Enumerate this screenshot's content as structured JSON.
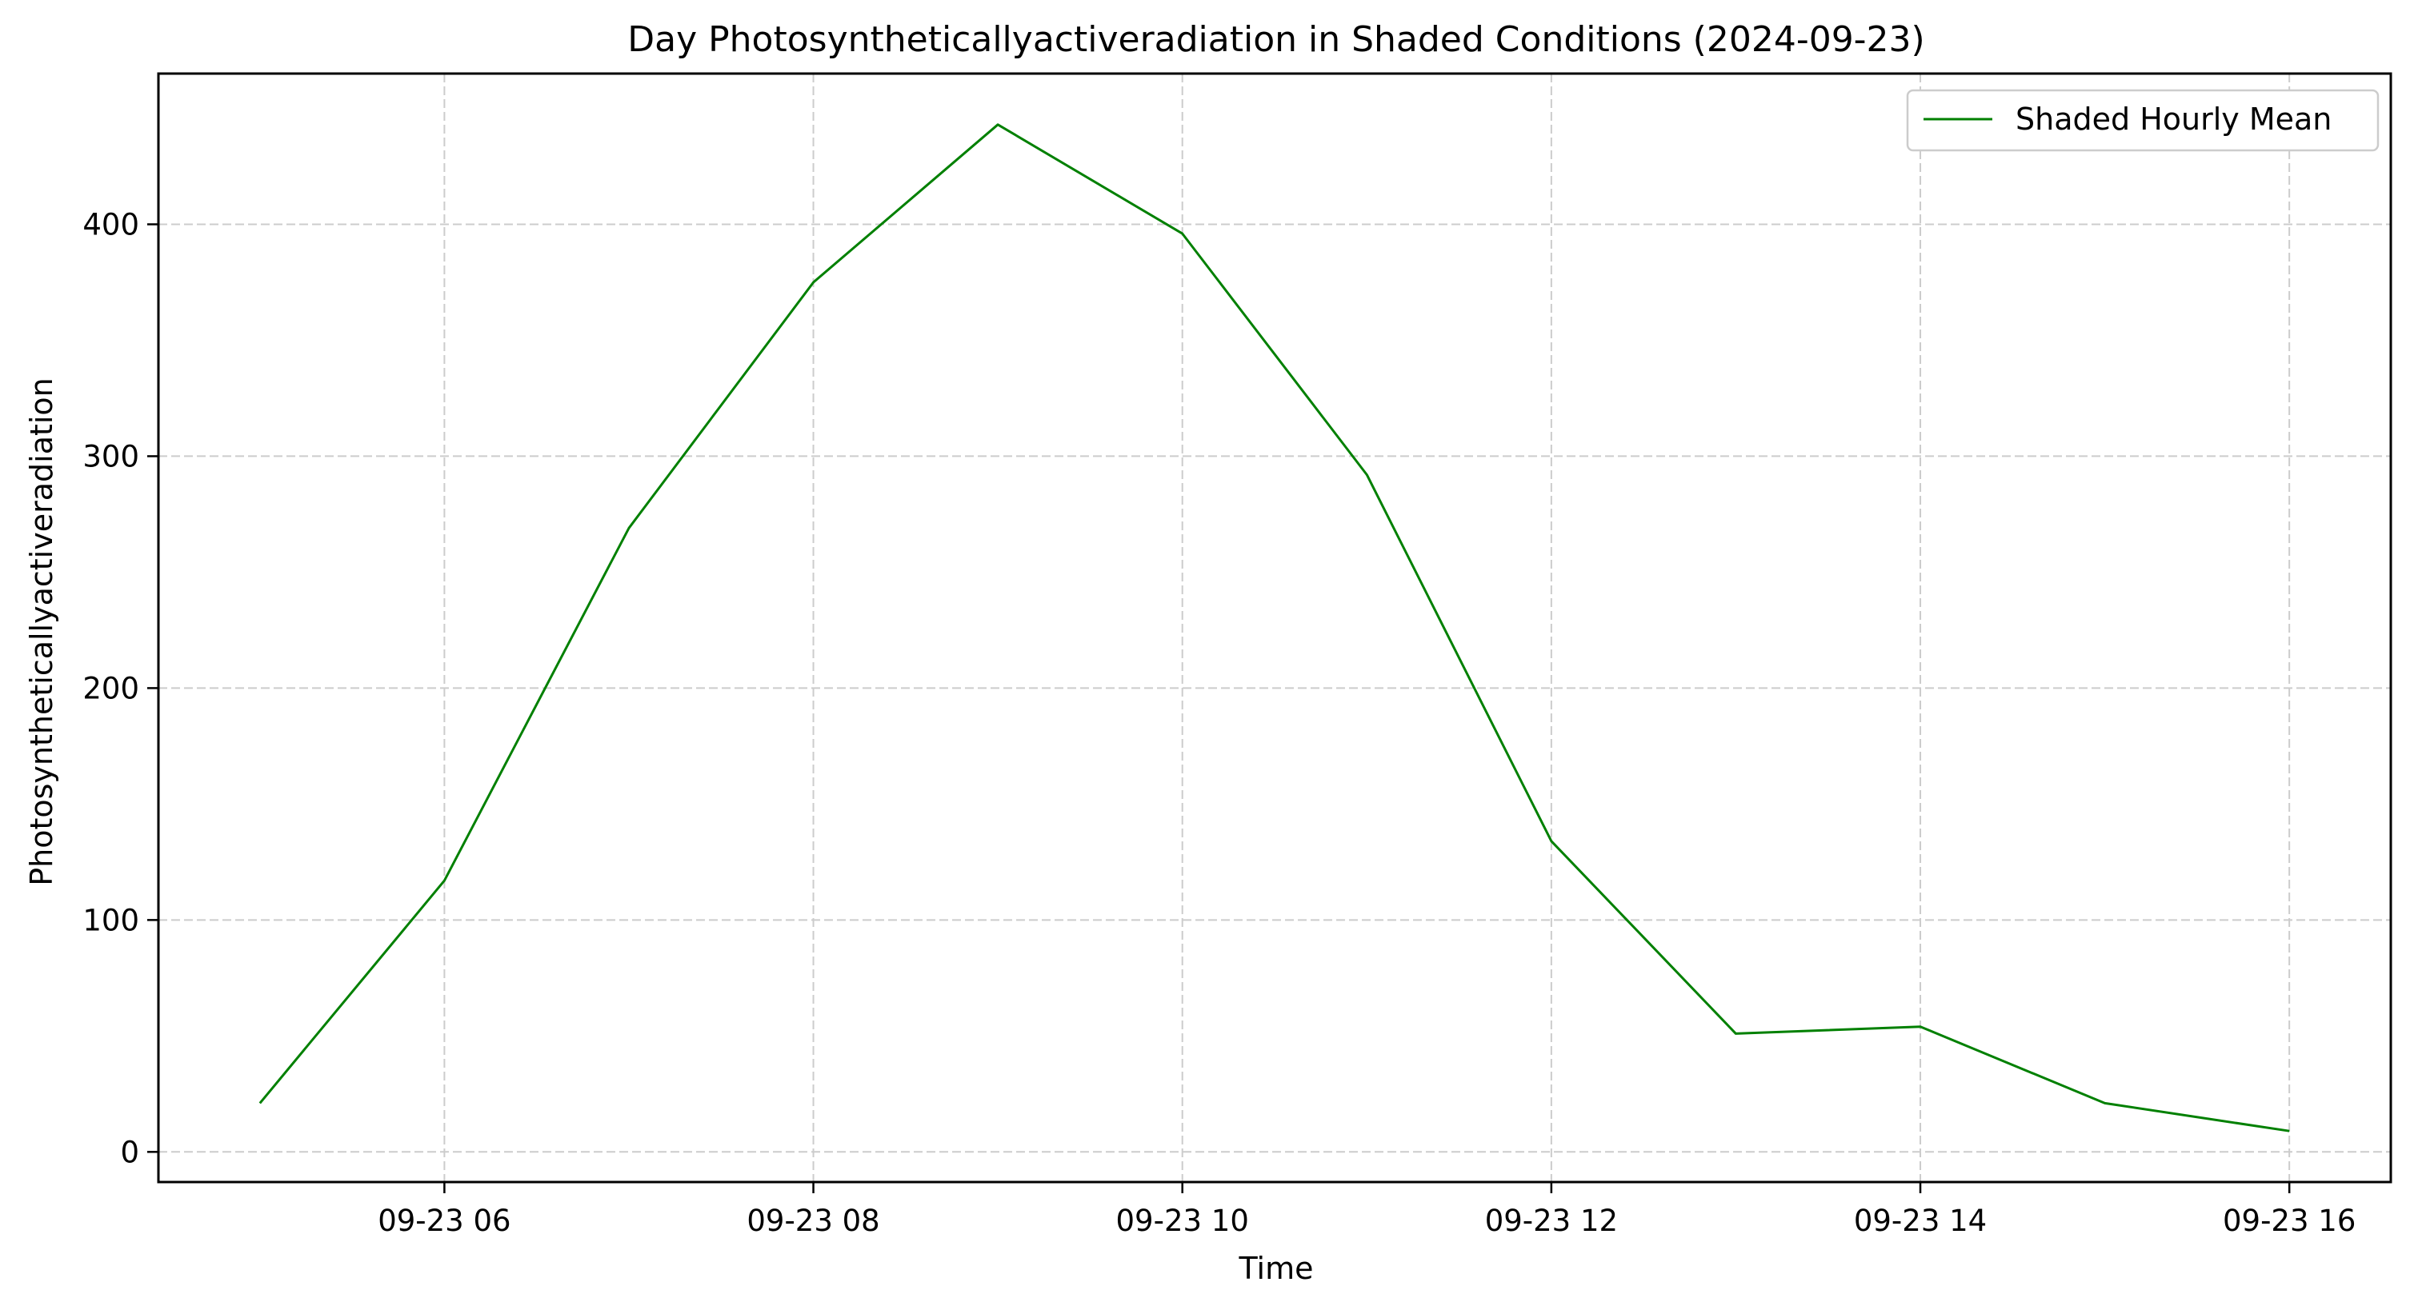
{
  "chart_data": {
    "type": "line",
    "title": "Day Photosyntheticallyactiveradiation in Shaded Conditions (2024-09-23)",
    "xlabel": "Time",
    "ylabel": "Photosyntheticallyactiveradiation",
    "x": [
      "2024-09-23 05:00",
      "2024-09-23 06:00",
      "2024-09-23 07:00",
      "2024-09-23 08:00",
      "2024-09-23 09:00",
      "2024-09-23 10:00",
      "2024-09-23 11:00",
      "2024-09-23 12:00",
      "2024-09-23 13:00",
      "2024-09-23 14:00",
      "2024-09-23 15:00",
      "2024-09-23 16:00"
    ],
    "x_hours": [
      5,
      6,
      7,
      8,
      9,
      10,
      11,
      12,
      13,
      14,
      15,
      16
    ],
    "series": [
      {
        "name": "Shaded Hourly Mean",
        "color": "#008000",
        "values": [
          21,
          117,
          269,
          375,
          443,
          396,
          292,
          134,
          51,
          54,
          21,
          9
        ]
      }
    ],
    "x_ticks": [
      {
        "hour": 6,
        "label": "09-23 06"
      },
      {
        "hour": 8,
        "label": "09-23 08"
      },
      {
        "hour": 10,
        "label": "09-23 10"
      },
      {
        "hour": 12,
        "label": "09-23 12"
      },
      {
        "hour": 14,
        "label": "09-23 14"
      },
      {
        "hour": 16,
        "label": "09-23 16"
      }
    ],
    "y_ticks": [
      0,
      100,
      200,
      300,
      400
    ],
    "xlim": [
      "2024-09-23 04:27",
      "2024-09-23 16:33"
    ],
    "ylim": [
      -13,
      465
    ],
    "grid": true,
    "legend_position": "top-right"
  }
}
